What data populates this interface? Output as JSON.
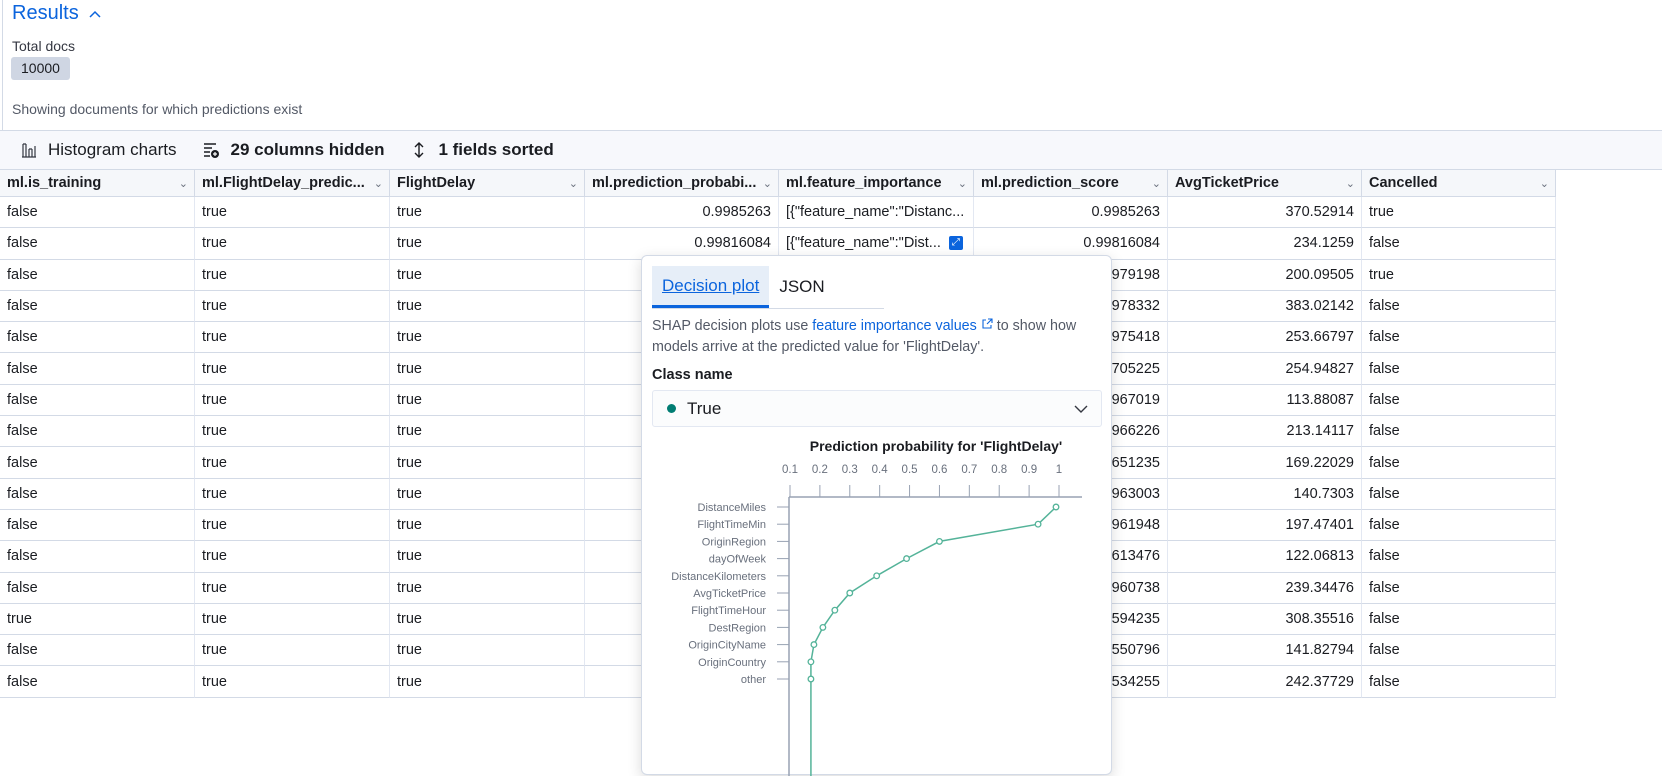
{
  "header": {
    "title": "Results",
    "total_docs_label": "Total docs",
    "total_docs": "10000",
    "subtitle": "Showing documents for which predictions exist"
  },
  "toolbar": {
    "histogram": "Histogram charts",
    "columns_hidden": "29 columns hidden",
    "fields_sorted": "1 fields sorted"
  },
  "table": {
    "columns": [
      "ml.is_training",
      "ml.FlightDelay_predic...",
      "FlightDelay",
      "ml.prediction_probabi...",
      "ml.feature_importance",
      "ml.prediction_score",
      "AvgTicketPrice",
      "Cancelled"
    ],
    "rows": [
      [
        "false",
        "true",
        "true",
        "0.9985263",
        "[{\"feature_name\":\"Distanc...",
        "0.9985263",
        "370.52914",
        "true"
      ],
      [
        "false",
        "true",
        "true",
        "0.99816084",
        "[{\"feature_name\":\"Dist...",
        "0.99816084",
        "234.1259",
        "false"
      ],
      [
        "false",
        "true",
        "true",
        "",
        "",
        "979198",
        "200.09505",
        "true"
      ],
      [
        "false",
        "true",
        "true",
        "",
        "",
        "978332",
        "383.02142",
        "false"
      ],
      [
        "false",
        "true",
        "true",
        "",
        "",
        "975418",
        "253.66797",
        "false"
      ],
      [
        "false",
        "true",
        "true",
        "",
        "",
        "705225",
        "254.94827",
        "false"
      ],
      [
        "false",
        "true",
        "true",
        "",
        "",
        "967019",
        "113.88087",
        "false"
      ],
      [
        "false",
        "true",
        "true",
        "",
        "",
        "966226",
        "213.14117",
        "false"
      ],
      [
        "false",
        "true",
        "true",
        "",
        "",
        "651235",
        "169.22029",
        "false"
      ],
      [
        "false",
        "true",
        "true",
        "",
        "",
        "963003",
        "140.7303",
        "false"
      ],
      [
        "false",
        "true",
        "true",
        "",
        "",
        "961948",
        "197.47401",
        "false"
      ],
      [
        "false",
        "true",
        "true",
        "",
        "",
        "613476",
        "122.06813",
        "false"
      ],
      [
        "false",
        "true",
        "true",
        "",
        "",
        "960738",
        "239.34476",
        "false"
      ],
      [
        "true",
        "true",
        "true",
        "",
        "",
        "594235",
        "308.35516",
        "false"
      ],
      [
        "false",
        "true",
        "true",
        "",
        "",
        "550796",
        "141.82794",
        "false"
      ],
      [
        "false",
        "true",
        "true",
        "",
        "",
        "534255",
        "242.37729",
        "false"
      ]
    ]
  },
  "popover": {
    "tabs": [
      "Decision plot",
      "JSON"
    ],
    "desc_before": "SHAP decision plots use ",
    "desc_link": "feature importance values",
    "desc_after": " to show how models arrive at the predicted value for 'FlightDelay'.",
    "class_label": "Class name",
    "class_value": "True",
    "class_color": "#017d73"
  },
  "chart_data": {
    "type": "line",
    "title": "Prediction probability for 'FlightDelay'",
    "x_ticks": [
      "0.1",
      "0.2",
      "0.3",
      "0.4",
      "0.5",
      "0.6",
      "0.7",
      "0.8",
      "0.9",
      "1"
    ],
    "xlim": [
      0.1,
      1.0
    ],
    "categories": [
      "DistanceMiles",
      "FlightTimeMin",
      "OriginRegion",
      "dayOfWeek",
      "DistanceKilometers",
      "AvgTicketPrice",
      "FlightTimeHour",
      "DestRegion",
      "OriginCityName",
      "OriginCountry",
      "other"
    ],
    "values": [
      0.99,
      0.93,
      0.6,
      0.49,
      0.39,
      0.3,
      0.25,
      0.21,
      0.18,
      0.17,
      0.17
    ],
    "color": "#54b399",
    "grid": false
  }
}
